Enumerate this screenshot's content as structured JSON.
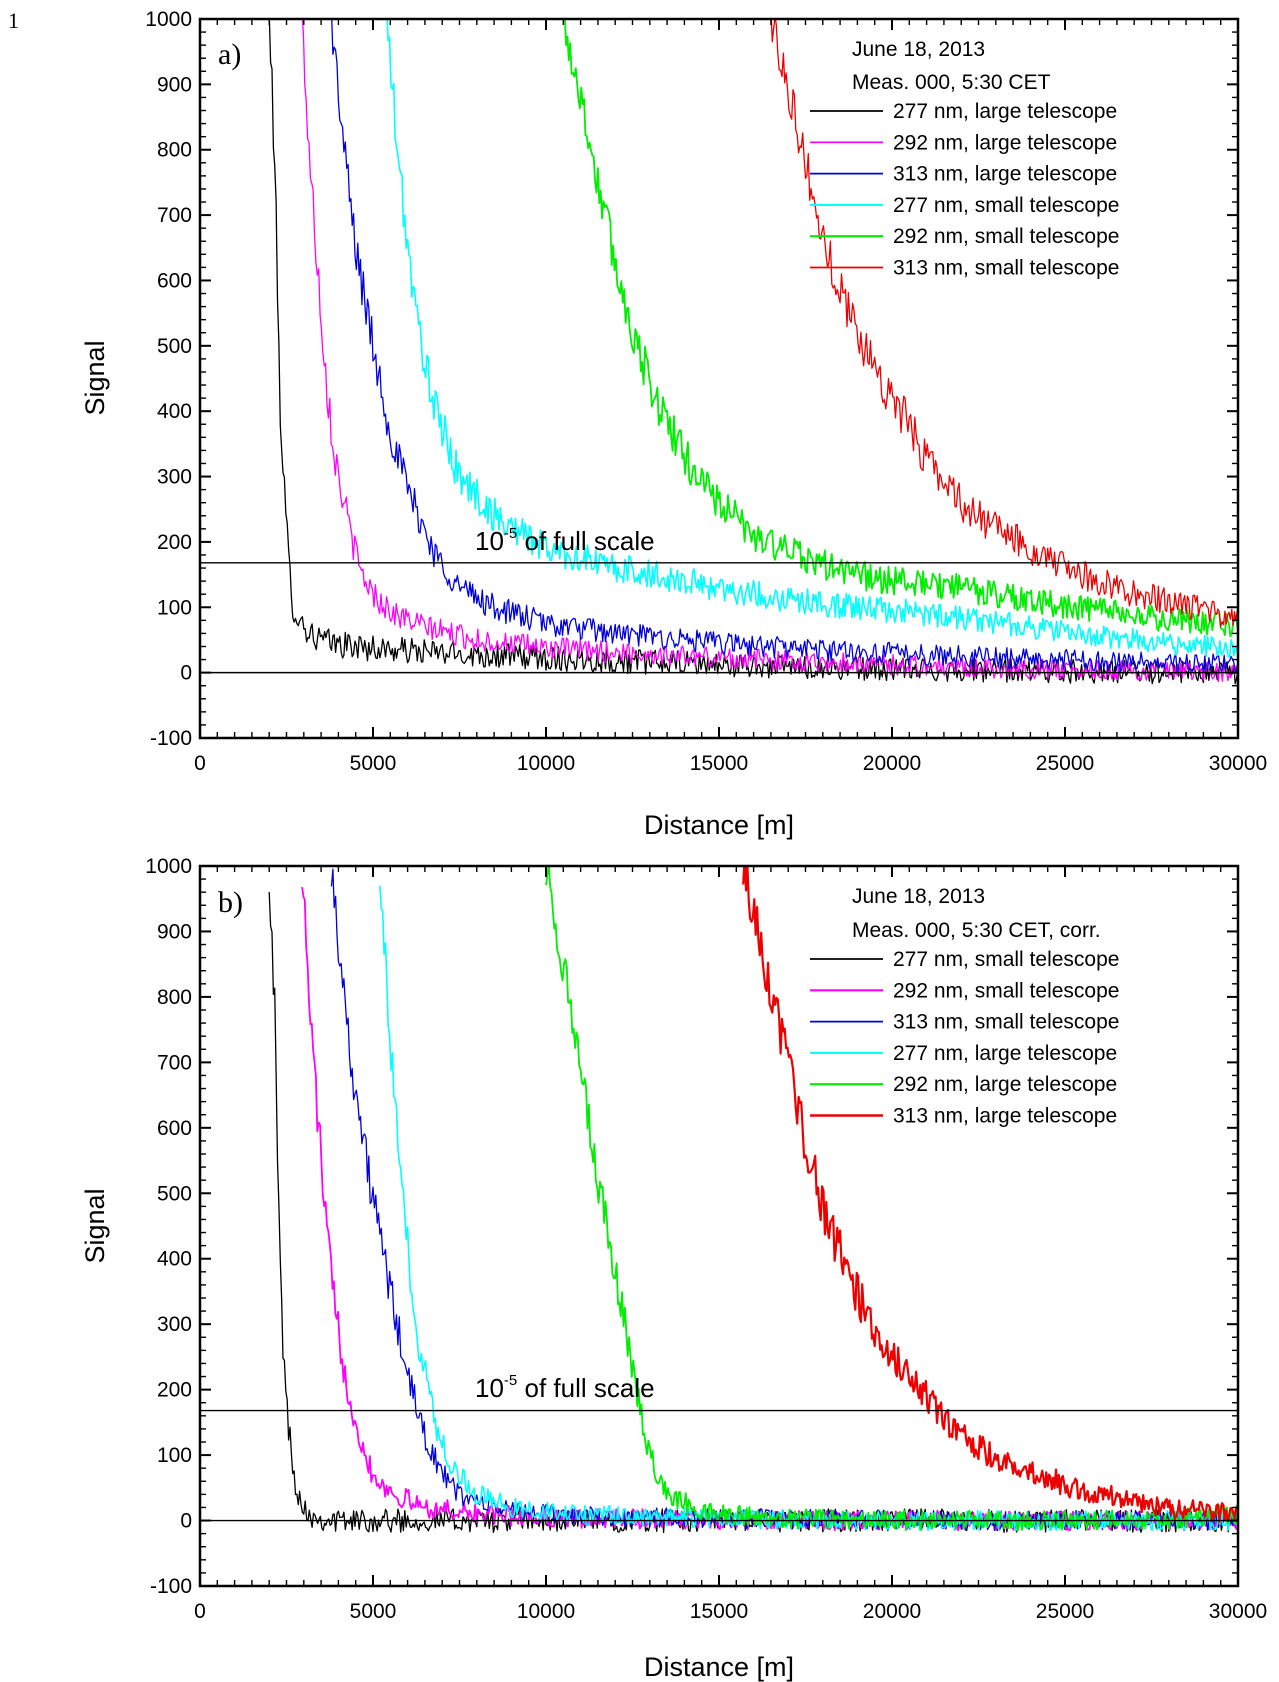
{
  "page_number": "1",
  "chart_data": [
    {
      "type": "line",
      "panel_label": "a)",
      "xlabel": "Distance [m]",
      "ylabel": "Signal",
      "xlim": [
        0,
        30000
      ],
      "ylim": [
        -100,
        1000
      ],
      "x_ticks": [
        0,
        5000,
        10000,
        15000,
        20000,
        25000,
        30000
      ],
      "y_ticks": [
        -100,
        0,
        100,
        200,
        300,
        400,
        500,
        600,
        700,
        800,
        900,
        1000
      ],
      "grid": false,
      "legend_position": "top-right",
      "legend_header": [
        "June 18, 2013",
        "Meas. 000, 5:30 CET"
      ],
      "annotation": {
        "base": "10",
        "exponent": "-5",
        "text": " of full scale",
        "y_value": 168
      },
      "zero_line": 0,
      "series": [
        {
          "name": "277 nm, large telescope",
          "color": "#000000",
          "width": 1.3,
          "x": [
            2000,
            2150,
            2300,
            2450,
            2550,
            2650,
            2800,
            3000,
            3300,
            3800,
            4500,
            5500,
            7000,
            9000,
            12000,
            16000,
            20000,
            25000,
            30000
          ],
          "y": [
            1000,
            800,
            440,
            260,
            180,
            110,
            90,
            70,
            55,
            45,
            40,
            35,
            30,
            25,
            18,
            10,
            5,
            2,
            0
          ],
          "noise": 30
        },
        {
          "name": "292 nm, large telescope",
          "color": "#ff00ff",
          "width": 1.3,
          "x": [
            2950,
            3150,
            3400,
            3650,
            3900,
            4200,
            4600,
            5000,
            5600,
            6500,
            8000,
            10000,
            13000,
            17000,
            22000,
            30000
          ],
          "y": [
            1000,
            800,
            620,
            450,
            330,
            250,
            160,
            120,
            90,
            70,
            50,
            38,
            28,
            18,
            8,
            0
          ],
          "noise": 25
        },
        {
          "name": "313 nm, large telescope",
          "color": "#0000dd",
          "width": 1.3,
          "x": [
            3800,
            4100,
            4500,
            5000,
            5500,
            6000,
            6800,
            7500,
            8500,
            10000,
            12000,
            15000,
            18000,
            22000,
            26000,
            30000
          ],
          "y": [
            1000,
            830,
            650,
            500,
            370,
            280,
            180,
            130,
            100,
            75,
            60,
            45,
            35,
            25,
            18,
            12
          ],
          "noise": 25
        },
        {
          "name": "277 nm, small telescope",
          "color": "#00ffff",
          "width": 1.6,
          "x": [
            5400,
            5700,
            6200,
            6800,
            7500,
            8500,
            10000,
            12000,
            14000,
            16000,
            18000,
            20000,
            22000,
            24000,
            26000,
            28000,
            30000
          ],
          "y": [
            1000,
            800,
            560,
            400,
            300,
            240,
            190,
            160,
            140,
            120,
            105,
            95,
            85,
            70,
            55,
            45,
            35
          ],
          "noise": 25
        },
        {
          "name": "292 nm, small telescope",
          "color": "#00ee00",
          "width": 1.8,
          "x": [
            10500,
            11000,
            11500,
            12200,
            13000,
            14000,
            15000,
            16000,
            17000,
            18000,
            19000,
            20000,
            22000,
            24000,
            26000,
            28000,
            30000
          ],
          "y": [
            1000,
            880,
            750,
            580,
            440,
            330,
            260,
            210,
            185,
            165,
            150,
            140,
            130,
            110,
            95,
            80,
            70
          ],
          "noise": 25
        },
        {
          "name": "313 nm, small telescope",
          "color": "#ee0000",
          "width": 1.3,
          "x": [
            16500,
            17000,
            17500,
            18000,
            19000,
            20000,
            21000,
            22000,
            23000,
            24000,
            25000,
            26000,
            27000,
            28000,
            29000,
            30000
          ],
          "y": [
            1000,
            900,
            780,
            660,
            520,
            420,
            330,
            260,
            220,
            190,
            160,
            140,
            120,
            110,
            95,
            80
          ],
          "noise": 25
        }
      ]
    },
    {
      "type": "line",
      "panel_label": "b)",
      "xlabel": "Distance [m]",
      "ylabel": "Signal",
      "xlim": [
        0,
        30000
      ],
      "ylim": [
        -100,
        1000
      ],
      "x_ticks": [
        0,
        5000,
        10000,
        15000,
        20000,
        25000,
        30000
      ],
      "y_ticks": [
        -100,
        0,
        100,
        200,
        300,
        400,
        500,
        600,
        700,
        800,
        900,
        1000
      ],
      "grid": false,
      "legend_position": "top-right",
      "legend_header": [
        "June 18, 2013",
        "Meas. 000, 5:30 CET, corr."
      ],
      "annotation": {
        "base": "10",
        "exponent": "-5",
        "text": " of full scale",
        "y_value": 168
      },
      "zero_line": 0,
      "series": [
        {
          "name": "277 nm, small telescope",
          "color": "#000000",
          "width": 1.3,
          "x": [
            2000,
            2150,
            2300,
            2450,
            2550,
            2650,
            2800,
            3000,
            3300,
            3800,
            4500,
            5500,
            6500,
            8000,
            12000,
            16000,
            20000,
            25000,
            30000
          ],
          "y": [
            1000,
            800,
            400,
            220,
            150,
            90,
            50,
            20,
            5,
            0,
            0,
            0,
            0,
            0,
            0,
            0,
            0,
            0,
            0
          ],
          "noise": 30
        },
        {
          "name": "292 nm, small telescope",
          "color": "#ff00ff",
          "width": 1.8,
          "x": [
            2950,
            3150,
            3400,
            3650,
            3900,
            4200,
            4600,
            5000,
            5600,
            6500,
            8000,
            10000,
            13000,
            17000,
            22000,
            30000
          ],
          "y": [
            1000,
            800,
            620,
            450,
            320,
            220,
            130,
            70,
            40,
            20,
            10,
            5,
            2,
            0,
            0,
            0
          ],
          "noise": 25
        },
        {
          "name": "313 nm, small telescope",
          "color": "#0000dd",
          "width": 1.3,
          "x": [
            3800,
            4100,
            4500,
            5000,
            5500,
            6000,
            6500,
            7000,
            7500,
            8500,
            10000,
            12000,
            15000,
            18000,
            22000,
            26000,
            30000
          ],
          "y": [
            1000,
            830,
            650,
            490,
            350,
            220,
            130,
            70,
            40,
            20,
            10,
            5,
            3,
            2,
            0,
            0,
            0
          ],
          "noise": 25
        },
        {
          "name": "277 nm, large telescope",
          "color": "#00ffff",
          "width": 1.6,
          "x": [
            5200,
            5500,
            5900,
            6300,
            6800,
            7300,
            8000,
            9000,
            10500,
            13000,
            16000,
            20000,
            25000,
            30000
          ],
          "y": [
            1000,
            720,
            460,
            280,
            150,
            80,
            40,
            20,
            10,
            5,
            2,
            0,
            0,
            0
          ],
          "noise": 25
        },
        {
          "name": "292 nm, large telescope",
          "color": "#00ee00",
          "width": 1.8,
          "x": [
            10000,
            10500,
            11000,
            11500,
            12000,
            12500,
            13000,
            13500,
            14500,
            16000,
            18000,
            21000,
            25000,
            28000,
            30000
          ],
          "y": [
            1000,
            850,
            680,
            520,
            380,
            230,
            100,
            40,
            15,
            5,
            2,
            0,
            0,
            2,
            10
          ],
          "noise": 25
        },
        {
          "name": "313 nm, large telescope",
          "color": "#ee0000",
          "width": 2.2,
          "x": [
            15700,
            16200,
            16800,
            17400,
            18000,
            18700,
            19500,
            20300,
            21000,
            21600,
            22300,
            23000,
            24000,
            25000,
            26000,
            27000,
            28000,
            29000,
            30000
          ],
          "y": [
            1000,
            880,
            740,
            600,
            480,
            380,
            290,
            230,
            190,
            150,
            120,
            95,
            75,
            55,
            40,
            30,
            20,
            15,
            10
          ],
          "noise": 25
        }
      ]
    }
  ]
}
